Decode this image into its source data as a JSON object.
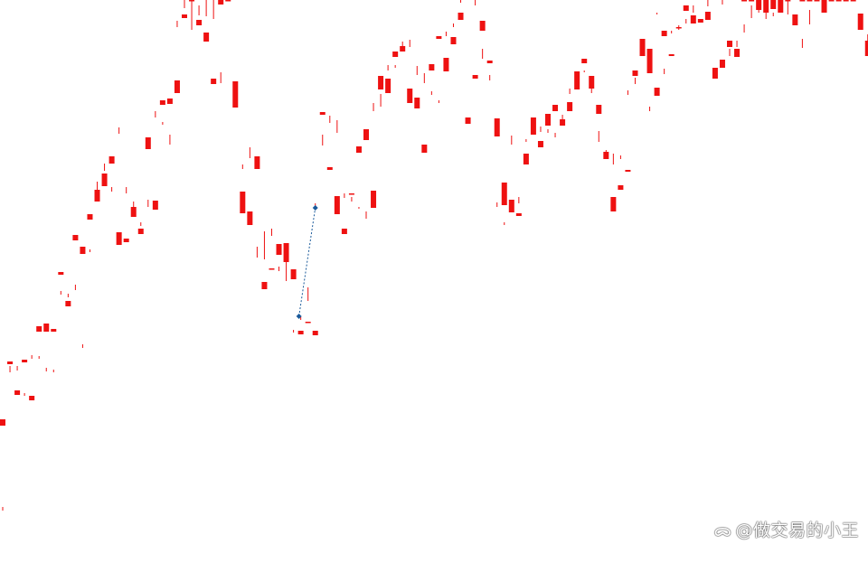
{
  "watermark": {
    "text": "@做交易的小王",
    "logo_icon": "weibo-logo-icon"
  },
  "colors": {
    "bull": "#ee1111",
    "bear": "#13857f",
    "marker": "#1a5a9a",
    "crosshair": "#111111"
  },
  "chart_data": {
    "type": "candlestick",
    "title": "",
    "xlabel": "",
    "ylabel": "",
    "grid": false,
    "ylim": [
      0,
      623
    ],
    "crosshair_index": 121,
    "trend_marker": {
      "from_index": 41,
      "from_value": 273,
      "to_index": 43,
      "to_value": 393
    },
    "candles": [
      [
        152,
        159,
        58,
        62
      ],
      [
        220,
        223,
        211,
        218
      ],
      [
        186,
        191,
        213,
        218
      ],
      [
        222,
        225,
        185,
        188
      ],
      [
        180,
        185,
        226,
        230
      ],
      [
        256,
        262,
        226,
        229
      ],
      [
        256,
        265,
        212,
        216
      ],
      [
        256,
        259,
        211,
        214
      ],
      [
        319,
        322,
        297,
        301
      ],
      [
        284,
        290,
        294,
        298
      ],
      [
        357,
        363,
        302,
        308
      ],
      [
        342,
        350,
        238,
        242
      ],
      [
        380,
        386,
        344,
        347
      ],
      [
        400,
        413,
        411,
        422
      ],
      [
        417,
        431,
        434,
        442
      ],
      [
        442,
        450,
        411,
        416
      ],
      [
        352,
        366,
        475,
        482
      ],
      [
        355,
        359,
        409,
        416
      ],
      [
        383,
        394,
        390,
        400
      ],
      [
        364,
        370,
        373,
        377
      ],
      [
        458,
        471,
        394,
        402
      ],
      [
        391,
        401,
        493,
        500
      ],
      [
        507,
        512,
        485,
        488
      ],
      [
        508,
        514,
        463,
        474
      ],
      [
        520,
        534,
        593,
        600
      ],
      [
        603,
        607,
        614,
        623
      ],
      [
        623,
        623,
        590,
        623
      ],
      [
        595,
        601,
        606,
        617
      ],
      [
        577,
        587,
        605,
        623
      ],
      [
        530,
        536,
        602,
        623
      ],
      [
        618,
        623,
        531,
        543
      ],
      [
        622,
        623,
        623,
        623
      ],
      [
        504,
        533,
        623,
        623
      ],
      [
        387,
        411,
        436,
        441
      ],
      [
        374,
        389,
        448,
        460
      ],
      [
        436,
        450,
        338,
        350
      ],
      [
        303,
        311,
        336,
        367
      ],
      [
        325,
        326,
        362,
        370
      ],
      [
        341,
        353,
        323,
        328
      ],
      [
        333,
        354,
        312,
        333
      ],
      [
        314,
        325,
        255,
        258
      ],
      [
        253,
        257,
        269,
        273
      ],
      [
        266,
        267,
        290,
        305
      ],
      [
        252,
        257,
        393,
        398
      ],
      [
        496,
        499,
        462,
        474
      ],
      [
        435,
        438,
        487,
        495
      ],
      [
        386,
        406,
        476,
        490
      ],
      [
        364,
        370,
        404,
        409
      ],
      [
        408,
        409,
        400,
        405
      ],
      [
        454,
        461,
        392,
        394
      ],
      [
        468,
        480,
        381,
        389
      ],
      [
        393,
        412,
        500,
        509
      ],
      [
        524,
        539,
        505,
        519
      ],
      [
        520,
        536,
        545,
        551
      ],
      [
        560,
        566,
        548,
        551
      ],
      [
        566,
        572,
        569,
        577
      ],
      [
        509,
        525,
        571,
        579
      ],
      [
        503,
        515,
        540,
        550
      ],
      [
        454,
        463,
        531,
        542
      ],
      [
        545,
        552,
        518,
        522
      ],
      [
        580,
        583,
        509,
        512
      ],
      [
        544,
        559,
        583,
        588
      ],
      [
        574,
        582,
        593,
        597
      ],
      [
        601,
        609,
        620,
        623
      ],
      [
        486,
        493,
        623,
        623
      ],
      [
        536,
        540,
        617,
        623
      ],
      [
        589,
        600,
        558,
        569
      ],
      [
        553,
        556,
        534,
        540
      ],
      [
        472,
        492,
        394,
        399
      ],
      [
        396,
        421,
        374,
        377
      ],
      [
        388,
        402,
        463,
        473
      ],
      [
        384,
        387,
        398,
        405
      ],
      [
        441,
        453,
        466,
        469
      ],
      [
        474,
        493,
        484,
        489
      ],
      [
        460,
        467,
        477,
        483
      ],
      [
        484,
        497,
        476,
        480
      ],
      [
        500,
        507,
        471,
        476
      ],
      [
        484,
        491,
        491,
        496
      ],
      [
        500,
        510,
        519,
        525
      ],
      [
        524,
        544,
        526,
        532
      ],
      [
        553,
        558,
        543,
        545
      ],
      [
        525,
        539,
        520,
        525
      ],
      [
        497,
        507,
        466,
        478
      ],
      [
        447,
        455,
        452,
        457
      ],
      [
        389,
        405,
        441,
        453
      ],
      [
        413,
        418,
        447,
        451
      ],
      [
        433,
        435,
        518,
        523
      ],
      [
        539,
        545,
        530,
        537
      ],
      [
        561,
        580,
        565,
        575
      ],
      [
        542,
        569,
        500,
        505
      ],
      [
        517,
        526,
        607,
        609
      ],
      [
        583,
        589,
        541,
        547
      ],
      [
        561,
        563,
        586,
        589
      ],
      [
        592,
        593,
        590,
        595
      ],
      [
        611,
        617,
        597,
        602
      ],
      [
        597,
        606,
        609,
        617
      ],
      [
        598,
        602,
        623,
        623
      ],
      [
        601,
        610,
        616,
        623
      ],
      [
        536,
        548,
        623,
        623
      ],
      [
        548,
        557,
        618,
        623
      ],
      [
        571,
        578,
        561,
        569
      ],
      [
        560,
        569,
        571,
        578
      ],
      [
        623,
        623,
        587,
        596
      ],
      [
        623,
        623,
        603,
        617
      ],
      [
        612,
        623,
        609,
        623
      ],
      [
        609,
        623,
        602,
        612
      ],
      [
        613,
        623,
        605,
        609
      ],
      [
        609,
        623,
        623,
        623
      ],
      [
        623,
        623,
        607,
        623
      ],
      [
        595,
        607,
        623,
        623
      ],
      [
        623,
        623,
        570,
        580
      ],
      [
        623,
        623,
        596,
        612
      ],
      [
        623,
        623,
        623,
        623
      ],
      [
        609,
        623,
        623,
        623
      ],
      [
        623,
        623,
        623,
        623
      ],
      [
        623,
        623,
        623,
        623
      ],
      [
        623,
        623,
        623,
        623
      ],
      [
        623,
        623,
        623,
        623
      ],
      [
        590,
        608,
        623,
        623
      ],
      [
        561,
        578,
        571,
        585
      ],
      [
        573,
        578,
        556,
        561
      ],
      [
        565,
        572,
        573,
        582
      ],
      [
        535,
        542,
        558,
        573
      ],
      [
        540,
        548,
        527,
        543
      ],
      [
        495,
        504,
        531,
        535
      ],
      [
        518,
        527,
        475,
        487
      ],
      [
        493,
        501,
        468,
        488
      ],
      [
        464,
        473,
        490,
        495
      ],
      [
        500,
        503,
        466,
        468
      ],
      [
        495,
        500,
        453,
        471
      ],
      [
        500,
        507,
        457,
        466
      ],
      [
        502,
        515,
        466,
        470
      ],
      [
        512,
        516,
        516,
        525
      ],
      [
        531,
        543,
        542,
        553
      ],
      [
        538,
        540,
        522,
        525
      ],
      [
        565,
        576,
        577,
        590
      ],
      [
        598,
        610,
        590,
        600
      ]
    ]
  }
}
